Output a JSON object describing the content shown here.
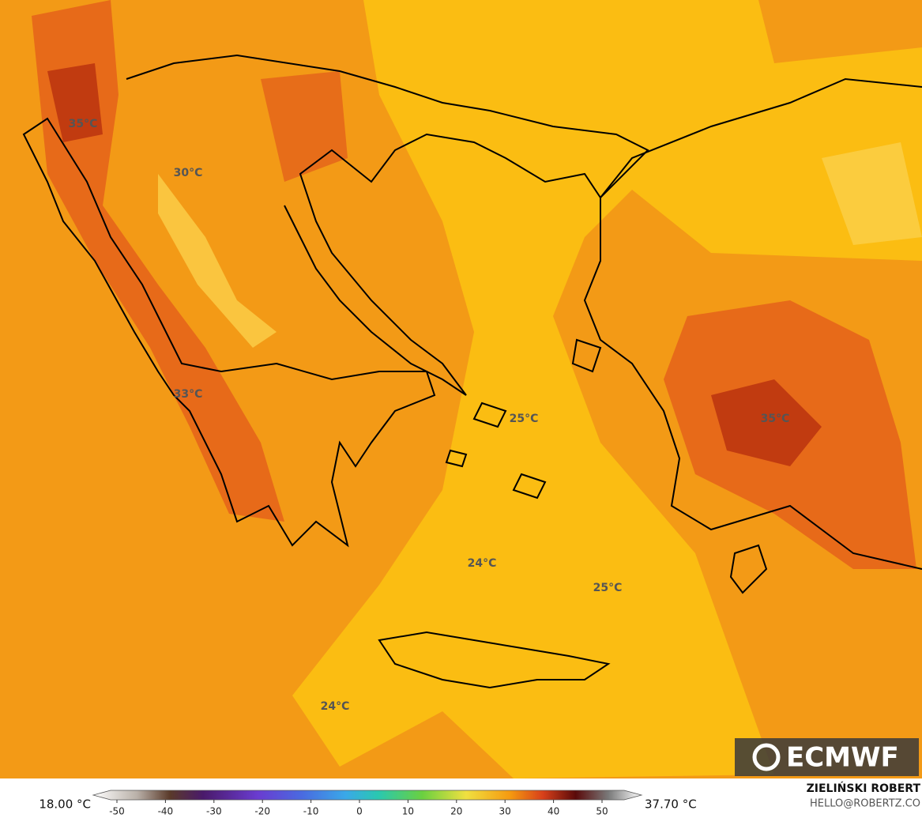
{
  "map": {
    "labels": [
      "35°C",
      "30°C",
      "33°C",
      "25°C",
      "35°C",
      "24°C",
      "25°C",
      "24°C"
    ]
  },
  "legend": {
    "min": "18.00 °C",
    "max": "37.70 °C",
    "ticks": [
      -50,
      -40,
      -30,
      -20,
      -10,
      0,
      10,
      20,
      30,
      40,
      50
    ]
  },
  "logo": "ECMWF",
  "credit": {
    "name": "ZIELIŃSKI ROBERT",
    "email": "HELLO@ROBERTZ.CO"
  }
}
